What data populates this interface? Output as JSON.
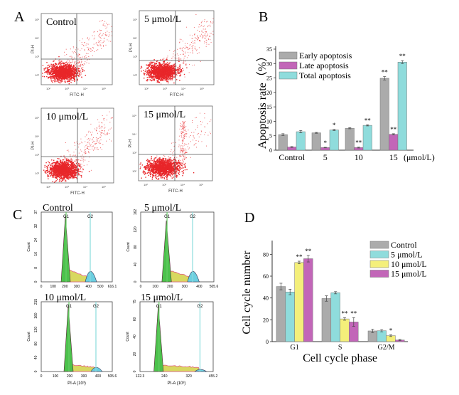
{
  "panel_labels": {
    "A": "A",
    "B": "B",
    "C": "C",
    "D": "D"
  },
  "colors": {
    "gray": "#ababab",
    "magenta": "#c266b8",
    "cyan": "#8fdcdc",
    "yellow": "#f4ef7a",
    "dot_red": "#e8262a",
    "hist_green": "#4cc24c",
    "hist_yellow": "#d8d860",
    "hist_cyan": "#6ccfe0",
    "hist_pink": "#e06080",
    "g1_line": "#66cc66",
    "g2_line": "#88dcdc"
  },
  "panel_a": {
    "plots": [
      {
        "label": "Control",
        "x_axis": "FITC-H",
        "y_axis": "PI-H"
      },
      {
        "label": "5 μmol/L",
        "x_axis": "FITC-H",
        "y_axis": "PI-H"
      },
      {
        "label": "10 μmol/L",
        "x_axis": "FITC-H",
        "y_axis": "PI-H"
      },
      {
        "label": "15 μmol/L",
        "x_axis": "FITC-H",
        "y_axis": "PI-H"
      }
    ],
    "tick_labels": [
      "10²",
      "10³",
      "10⁴",
      "10⁵"
    ]
  },
  "panel_c": {
    "plots": [
      {
        "label": "Control",
        "y_ticks": [
          "0",
          "8",
          "16",
          "24",
          "32",
          "37"
        ],
        "x_ticks": [
          "0",
          "100",
          "200",
          "300",
          "400",
          "500",
          "616.1"
        ],
        "x_axis": "",
        "y_axis": "Count",
        "g1": "G1",
        "g2": "G2"
      },
      {
        "label": "5 μmol/L",
        "y_ticks": [
          "0",
          "40",
          "80",
          "120",
          "162"
        ],
        "x_ticks": [
          "0",
          "100",
          "200",
          "300",
          "400",
          "505.6"
        ],
        "x_axis": "",
        "y_axis": "Count",
        "g1": "G1",
        "g2": "G2"
      },
      {
        "label": "10 μmol/L",
        "y_ticks": [
          "0",
          "40",
          "80",
          "120",
          "160",
          "215"
        ],
        "x_ticks": [
          "0",
          "100",
          "200",
          "300",
          "400",
          "505.6"
        ],
        "x_axis": "PI-A (10³)",
        "y_axis": "Count",
        "g1": "G1",
        "g2": "G2"
      },
      {
        "label": "15 μmol/L",
        "y_ticks": [
          "0",
          "20",
          "40",
          "60",
          "75"
        ],
        "x_ticks": [
          "122.3",
          "240",
          "320",
          "455.2"
        ],
        "x_axis": "PI-A (10³)",
        "y_axis": "Count",
        "g1": "G1",
        "g2": "G2"
      }
    ]
  },
  "chart_data": [
    {
      "panel": "B",
      "type": "bar",
      "title": "",
      "xlabel": "",
      "x_unit_label": "(μmol/L)",
      "ylabel": "Apoptosis rate（%）",
      "ylim": [
        0,
        35
      ],
      "yticks": [
        0,
        5,
        10,
        15,
        20,
        25,
        30,
        35
      ],
      "categories": [
        "Control",
        "5",
        "10",
        "15"
      ],
      "legend_position": "top-left",
      "series": [
        {
          "name": "Early apoptosis",
          "color": "#ababab",
          "values": [
            5.4,
            6.0,
            7.6,
            24.9
          ],
          "errors": [
            0.3,
            0.15,
            0.2,
            0.6
          ],
          "significance": [
            "",
            "",
            "",
            "**"
          ]
        },
        {
          "name": "Late apoptosis",
          "color": "#c266b8",
          "values": [
            1.1,
            0.9,
            0.9,
            5.5
          ],
          "errors": [
            0.15,
            0.1,
            0.15,
            0.2
          ],
          "significance": [
            "",
            "*",
            "**",
            "**"
          ]
        },
        {
          "name": "Total apoptosis",
          "color": "#8fdcdc",
          "values": [
            6.4,
            7.0,
            8.6,
            30.5
          ],
          "errors": [
            0.4,
            0.2,
            0.2,
            0.5
          ],
          "significance": [
            "",
            "*",
            "**",
            "**"
          ]
        }
      ]
    },
    {
      "panel": "D",
      "type": "bar",
      "title": "",
      "xlabel": "Cell cycle phase",
      "ylabel": "Cell cycle number",
      "ylim": [
        0,
        90
      ],
      "yticks": [
        0,
        20,
        40,
        60,
        80
      ],
      "categories": [
        "G1",
        "S",
        "G2/M"
      ],
      "legend_position": "top-right",
      "series": [
        {
          "name": "Control",
          "color": "#ababab",
          "values": [
            50.5,
            39.5,
            9.8
          ],
          "errors": [
            3.0,
            2.5,
            1.5
          ],
          "significance": [
            "",
            "",
            ""
          ]
        },
        {
          "name": "5 μmol/L",
          "color": "#8fdcdc",
          "values": [
            45.5,
            44.8,
            10.0
          ],
          "errors": [
            2.5,
            1.0,
            1.0
          ],
          "significance": [
            "",
            "",
            ""
          ]
        },
        {
          "name": "10 μmol/L",
          "color": "#f4ef7a",
          "values": [
            72.5,
            20.8,
            5.5
          ],
          "errors": [
            1.2,
            1.2,
            0.8
          ],
          "significance": [
            "**",
            "**",
            "*"
          ]
        },
        {
          "name": "15 μmol/L",
          "color": "#c266b8",
          "values": [
            76.0,
            18.0,
            1.5
          ],
          "errors": [
            3.0,
            4.0,
            0.5
          ],
          "significance": [
            "**",
            "**",
            ""
          ]
        }
      ]
    }
  ]
}
